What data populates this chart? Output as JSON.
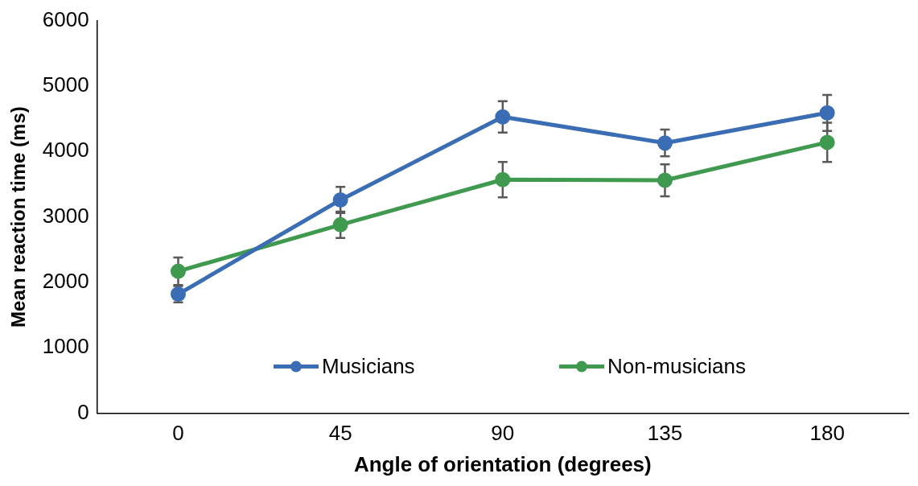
{
  "chart_data": {
    "type": "line",
    "xlabel": "Angle of orientation (degrees)",
    "ylabel": "Mean reaction time (ms)",
    "categories": [
      "0",
      "45",
      "90",
      "135",
      "180"
    ],
    "series": [
      {
        "name": "Musicians",
        "color": "#3b6db5",
        "values": [
          1820,
          3260,
          4530,
          4130,
          4590
        ],
        "errors": [
          125,
          200,
          240,
          205,
          275
        ]
      },
      {
        "name": "Non-musicians",
        "color": "#3f9a4f",
        "values": [
          2170,
          2880,
          3570,
          3560,
          4140
        ],
        "errors": [
          210,
          200,
          270,
          245,
          300
        ]
      }
    ],
    "ylim": [
      0,
      6000
    ],
    "yticks": [
      0,
      1000,
      2000,
      3000,
      4000,
      5000,
      6000
    ],
    "grid": false,
    "legend": "bottom",
    "marker": "circle",
    "line_style": "solid"
  }
}
